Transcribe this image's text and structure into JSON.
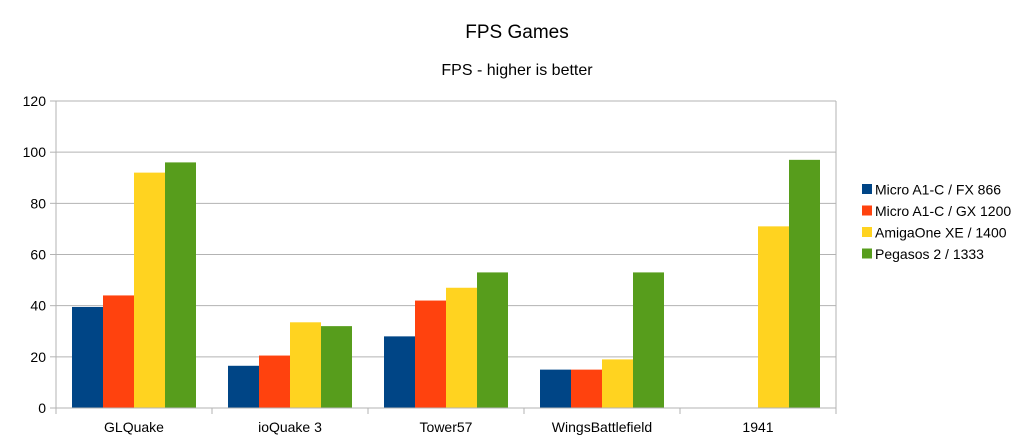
{
  "chart_data": {
    "type": "bar",
    "title": "FPS Games",
    "subtitle": "FPS - higher is better",
    "xlabel": "",
    "ylabel": "",
    "categories": [
      "GLQuake",
      "ioQuake 3",
      "Tower57",
      "WingsBattlefield",
      "1941"
    ],
    "ylim": [
      0,
      120
    ],
    "yticks": [
      0,
      20,
      40,
      60,
      80,
      100,
      120
    ],
    "grid": true,
    "legend_position": "right",
    "series": [
      {
        "name": "Micro A1-C / FX 866",
        "color": "#004586",
        "values": [
          39.5,
          16.5,
          28,
          15,
          0
        ]
      },
      {
        "name": "Micro A1-C / GX 1200",
        "color": "#ff420e",
        "values": [
          44,
          20.5,
          42,
          15,
          0
        ]
      },
      {
        "name": "AmigaOne XE / 1400",
        "color": "#ffd320",
        "values": [
          92,
          33.5,
          47,
          19,
          71
        ]
      },
      {
        "name": "Pegasos 2 / 1333",
        "color": "#579d1c",
        "values": [
          96,
          32,
          53,
          53,
          97
        ]
      }
    ]
  }
}
